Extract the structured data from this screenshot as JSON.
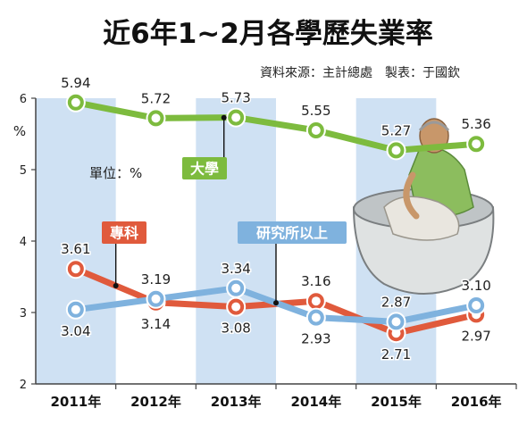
{
  "title": "近6年1~2月各學歷失業率",
  "source_note": "資料來源：主計總處　製表：于國欽",
  "chart_data": {
    "type": "line",
    "unit_label": "單位：%",
    "ylabel": "%",
    "ylim": [
      2,
      6
    ],
    "yticks": [
      "2",
      "3",
      "4",
      "5",
      "6"
    ],
    "categories": [
      "2011年",
      "2012年",
      "2013年",
      "2014年",
      "2015年",
      "2016年"
    ],
    "grid": false,
    "series": [
      {
        "name": "大學",
        "color": "#7dbb3e",
        "values": [
          5.94,
          5.72,
          5.73,
          5.55,
          5.27,
          5.36
        ],
        "labels": [
          "5.94",
          "5.72",
          "5.73",
          "5.55",
          "5.27",
          "5.36"
        ]
      },
      {
        "name": "專科",
        "color": "#e05a3c",
        "values": [
          3.61,
          3.14,
          3.08,
          3.16,
          2.71,
          2.97
        ],
        "labels": [
          "3.61",
          "3.14",
          "3.08",
          "3.16",
          "2.71",
          "2.97"
        ]
      },
      {
        "name": "研究所以上",
        "color": "#7fb2de",
        "values": [
          3.04,
          3.19,
          3.34,
          2.93,
          2.87,
          3.1
        ],
        "labels": [
          "3.04",
          "3.19",
          "3.34",
          "2.93",
          "2.87",
          "3.10"
        ]
      }
    ]
  },
  "colors": {
    "band": "#cfe1f3",
    "axis": "#444444",
    "text": "#222222"
  },
  "illustration": "person-sitting-in-rice-bowl"
}
